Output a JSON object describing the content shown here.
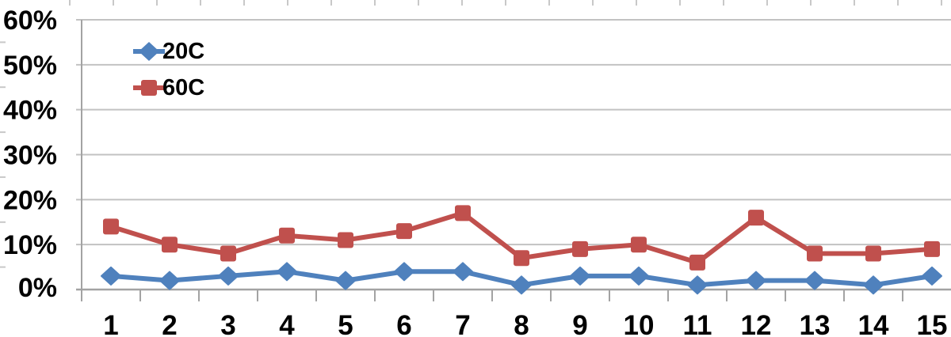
{
  "chart_data": {
    "type": "line",
    "title": "",
    "xlabel": "",
    "ylabel": "",
    "categories": [
      "1",
      "2",
      "3",
      "4",
      "5",
      "6",
      "7",
      "8",
      "9",
      "10",
      "11",
      "12",
      "13",
      "14",
      "15"
    ],
    "series": [
      {
        "name": "20C",
        "marker": "diamond",
        "color": "#4F81BD",
        "values": [
          3,
          2,
          3,
          4,
          2,
          4,
          4,
          1,
          3,
          3,
          1,
          2,
          2,
          1,
          3
        ]
      },
      {
        "name": "60C",
        "marker": "square",
        "color": "#C0504D",
        "values": [
          14,
          10,
          8,
          12,
          11,
          13,
          17,
          7,
          9,
          10,
          6,
          16,
          8,
          8,
          9
        ]
      }
    ],
    "y_axis": {
      "min": 0,
      "max": 60,
      "step": 10,
      "tick_labels_top_to_bottom": [
        "60%",
        "50%",
        "40%",
        "30%",
        "20%",
        "10%",
        "0%"
      ],
      "unit": "percent"
    },
    "x_axis": {
      "tick_labels": [
        "1",
        "2",
        "3",
        "4",
        "5",
        "6",
        "7",
        "8",
        "9",
        "10",
        "11",
        "12",
        "13",
        "14",
        "15"
      ]
    },
    "grid": true,
    "legend_position": "inside-top-left",
    "colors": {
      "gridline": "#C2C2C2",
      "axis": "#A3A3A3",
      "minor_tick": "#C8C8C8",
      "label_text": "#000000",
      "background": "#FFFFFF"
    }
  }
}
